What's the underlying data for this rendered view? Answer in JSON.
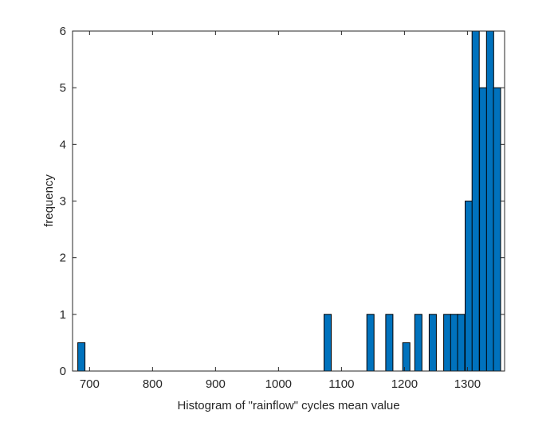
{
  "chart_data": {
    "type": "bar",
    "subtype": "histogram",
    "title": "",
    "xlabel": "Histogram of \"rainflow\" cycles mean value",
    "ylabel": "frequency",
    "xlim": [
      673,
      1359
    ],
    "ylim": [
      0,
      6
    ],
    "xticks": [
      700,
      800,
      900,
      1000,
      1100,
      1200,
      1300
    ],
    "yticks": [
      0,
      1,
      2,
      3,
      4,
      5,
      6
    ],
    "grid": false,
    "legend": null,
    "bin_width": 11.4,
    "bins": [
      {
        "center": 687,
        "value": 0.5
      },
      {
        "center": 1078,
        "value": 1
      },
      {
        "center": 1146,
        "value": 1
      },
      {
        "center": 1176,
        "value": 1
      },
      {
        "center": 1203,
        "value": 0.5
      },
      {
        "center": 1222,
        "value": 1
      },
      {
        "center": 1245,
        "value": 1
      },
      {
        "center": 1268,
        "value": 1
      },
      {
        "center": 1279,
        "value": 1
      },
      {
        "center": 1290,
        "value": 1
      },
      {
        "center": 1302,
        "value": 3
      },
      {
        "center": 1313,
        "value": 6
      },
      {
        "center": 1325,
        "value": 5
      },
      {
        "center": 1336,
        "value": 6
      },
      {
        "center": 1347,
        "value": 5
      }
    ],
    "colors": {
      "bar_fill": "#0072BD",
      "bar_edge": "#000000",
      "axis": "#262626",
      "background": "#ffffff"
    }
  }
}
